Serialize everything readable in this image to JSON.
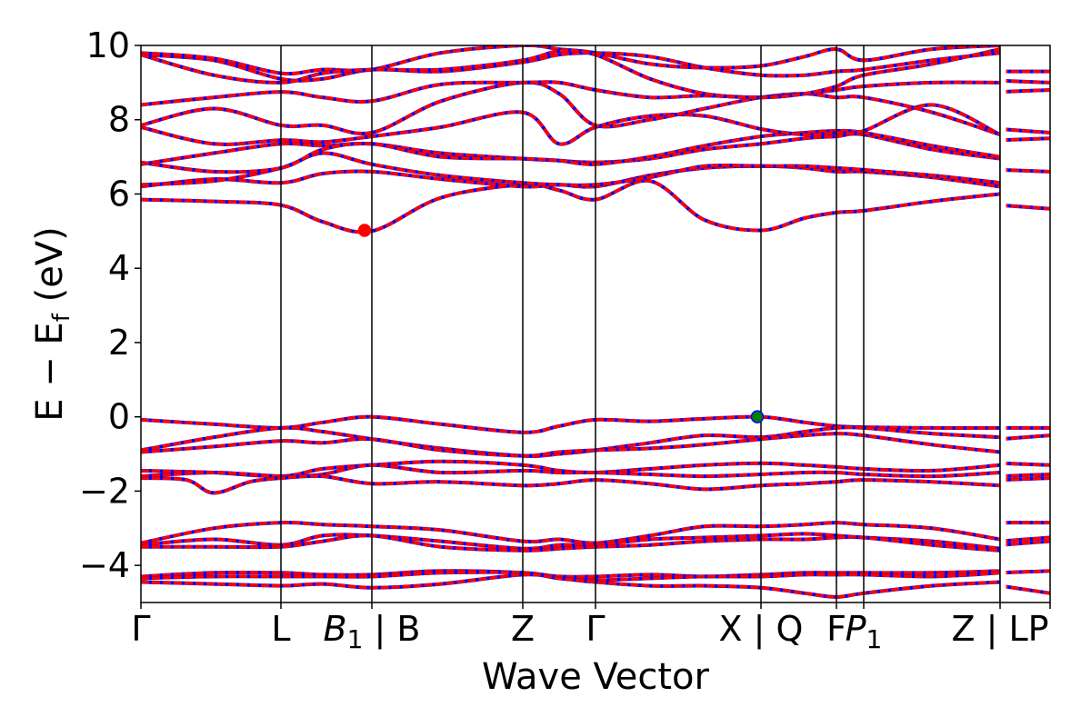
{
  "chart_data": {
    "type": "line",
    "xlabel": "Wave Vector",
    "ylabel": "E − E",
    "ylabel_sub": "f",
    "ylabel_unit": "(eV)",
    "ylim": [
      -5,
      10
    ],
    "yticks": [
      -4,
      -2,
      0,
      2,
      4,
      6,
      8,
      10
    ],
    "ytick_labels": [
      "−4",
      "−2",
      "0",
      "2",
      "4",
      "6",
      "8",
      "10"
    ],
    "xlim": [
      0,
      10
    ],
    "kpoints": [
      {
        "x": 0.0,
        "label": "Γ",
        "sub": ""
      },
      {
        "x": 1.54,
        "label": "L",
        "sub": ""
      },
      {
        "x": 2.54,
        "label": "B",
        "sub": "1",
        "suffix": " | B",
        "italic": true
      },
      {
        "x": 4.2,
        "label": "Z",
        "sub": ""
      },
      {
        "x": 5.0,
        "label": "Γ",
        "sub": ""
      },
      {
        "x": 6.82,
        "label": "X | Q",
        "sub": ""
      },
      {
        "x": 7.65,
        "label": "F",
        "sub": ""
      },
      {
        "x": 7.95,
        "label": "P",
        "sub": "1",
        "italic": true
      },
      {
        "x": 9.45,
        "label": "Z | LP",
        "sub": ""
      },
      {
        "x": 10.0,
        "label": "",
        "sub": ""
      }
    ],
    "segment_breaks": [
      9.45
    ],
    "line_colors": {
      "primary": "#ff0000",
      "secondary": "#0000ff"
    },
    "markers": [
      {
        "name": "cbm",
        "x": 2.46,
        "y": 5.02,
        "color": "#ff0000"
      },
      {
        "name": "vbm",
        "x": 6.78,
        "y": 0.0,
        "color": "#008000"
      }
    ],
    "bands": [
      {
        "x": [
          0,
          0.8,
          1.54,
          2.0,
          2.54,
          3.3,
          4.2,
          4.6,
          5.0,
          5.6,
          6.2,
          6.82,
          7.3,
          7.65,
          7.95,
          8.7,
          9.45
        ],
        "y": [
          -0.08,
          -0.2,
          -0.3,
          -0.15,
          0.0,
          -0.2,
          -0.42,
          -0.25,
          -0.08,
          -0.12,
          -0.05,
          0.0,
          -0.15,
          -0.25,
          -0.28,
          -0.3,
          -0.3
        ]
      },
      {
        "x": [
          0,
          0.8,
          1.54,
          2.0,
          2.54,
          3.3,
          4.2,
          4.6,
          5.0,
          5.6,
          6.2,
          6.82,
          7.3,
          7.65,
          7.95,
          8.7,
          9.45
        ],
        "y": [
          -0.9,
          -0.55,
          -0.3,
          -0.4,
          -0.6,
          -0.85,
          -1.05,
          -1.0,
          -0.9,
          -0.7,
          -0.5,
          -0.55,
          -0.4,
          -0.3,
          -0.3,
          -0.45,
          -0.55
        ]
      },
      {
        "x": [
          0,
          0.8,
          1.54,
          2.0,
          2.54,
          3.3,
          4.2,
          4.6,
          5.0,
          5.6,
          6.2,
          6.82,
          7.3,
          7.65,
          7.95,
          8.7,
          9.45
        ],
        "y": [
          -0.95,
          -0.8,
          -0.65,
          -0.7,
          -0.6,
          -0.9,
          -1.05,
          -0.95,
          -0.9,
          -0.85,
          -0.75,
          -0.6,
          -0.5,
          -0.45,
          -0.5,
          -0.75,
          -0.95
        ]
      },
      {
        "x": [
          0,
          0.8,
          1.54,
          2.0,
          2.54,
          3.3,
          4.2,
          4.6,
          5.0,
          5.6,
          6.2,
          6.82,
          7.3,
          7.65,
          7.95,
          8.7,
          9.45
        ],
        "y": [
          -1.45,
          -1.5,
          -1.6,
          -1.4,
          -1.3,
          -1.2,
          -1.3,
          -1.45,
          -1.5,
          -1.4,
          -1.3,
          -1.25,
          -1.3,
          -1.35,
          -1.4,
          -1.45,
          -1.3
        ]
      },
      {
        "x": [
          0,
          0.8,
          1.54,
          2.0,
          2.54,
          3.3,
          4.2,
          4.6,
          5.0,
          5.6,
          6.2,
          6.82,
          7.3,
          7.65,
          7.95,
          8.7,
          9.45
        ],
        "y": [
          -1.6,
          -1.5,
          -1.6,
          -1.55,
          -1.3,
          -1.5,
          -1.45,
          -1.5,
          -1.5,
          -1.55,
          -1.6,
          -1.55,
          -1.5,
          -1.5,
          -1.55,
          -1.6,
          -1.5
        ]
      },
      {
        "x": [
          0,
          0.5,
          0.8,
          1.2,
          1.54,
          2.0,
          2.54,
          3.3,
          4.2,
          4.6,
          5.0,
          5.6,
          6.2,
          6.82,
          7.3,
          7.65,
          7.95,
          8.7,
          9.45
        ],
        "y": [
          -1.65,
          -1.7,
          -2.05,
          -1.75,
          -1.65,
          -1.6,
          -1.8,
          -1.75,
          -1.85,
          -1.8,
          -1.7,
          -1.8,
          -1.95,
          -1.85,
          -1.8,
          -1.75,
          -1.7,
          -1.75,
          -1.85
        ]
      },
      {
        "x": [
          0,
          0.8,
          1.54,
          2.0,
          2.54,
          3.3,
          4.2,
          4.6,
          5.0,
          5.6,
          6.2,
          6.82,
          7.3,
          7.65,
          7.95,
          8.7,
          9.45
        ],
        "y": [
          -3.4,
          -3.0,
          -2.85,
          -2.9,
          -2.95,
          -3.05,
          -3.35,
          -3.3,
          -3.4,
          -3.2,
          -2.95,
          -2.95,
          -2.9,
          -2.85,
          -2.9,
          -3.0,
          -3.3
        ]
      },
      {
        "x": [
          0,
          0.8,
          1.54,
          2.0,
          2.54,
          3.3,
          4.2,
          4.6,
          5.0,
          5.6,
          6.2,
          6.82,
          7.3,
          7.65,
          7.95,
          8.7,
          9.45
        ],
        "y": [
          -3.45,
          -3.3,
          -3.45,
          -3.2,
          -3.2,
          -3.35,
          -3.55,
          -3.45,
          -3.45,
          -3.3,
          -3.25,
          -3.2,
          -3.15,
          -3.2,
          -3.25,
          -3.35,
          -3.55
        ]
      },
      {
        "x": [
          0,
          0.8,
          1.54,
          2.0,
          2.54,
          3.3,
          4.2,
          4.6,
          5.0,
          5.6,
          6.2,
          6.82,
          7.3,
          7.65,
          7.95,
          8.7,
          9.45
        ],
        "y": [
          -3.5,
          -3.5,
          -3.5,
          -3.35,
          -3.2,
          -3.5,
          -3.6,
          -3.55,
          -3.5,
          -3.45,
          -3.35,
          -3.3,
          -3.3,
          -3.25,
          -3.25,
          -3.45,
          -3.6
        ]
      },
      {
        "x": [
          0,
          0.8,
          1.54,
          2.0,
          2.54,
          3.3,
          4.2,
          4.6,
          5.0,
          5.6,
          6.2,
          6.82,
          7.3,
          7.65,
          7.95,
          8.7,
          9.45
        ],
        "y": [
          -4.3,
          -4.2,
          -4.2,
          -4.25,
          -4.25,
          -4.15,
          -4.2,
          -4.3,
          -4.3,
          -4.25,
          -4.3,
          -4.25,
          -4.2,
          -4.2,
          -4.2,
          -4.2,
          -4.15
        ]
      },
      {
        "x": [
          0,
          0.8,
          1.54,
          2.0,
          2.54,
          3.3,
          4.2,
          4.6,
          5.0,
          5.6,
          6.2,
          6.82,
          7.3,
          7.65,
          7.95,
          8.7,
          9.45
        ],
        "y": [
          -4.35,
          -4.3,
          -4.3,
          -4.3,
          -4.3,
          -4.2,
          -4.2,
          -4.35,
          -4.4,
          -4.35,
          -4.3,
          -4.3,
          -4.25,
          -4.25,
          -4.25,
          -4.3,
          -4.2
        ]
      },
      {
        "x": [
          0,
          0.8,
          1.54,
          2.0,
          2.54,
          3.3,
          4.2,
          4.6,
          5.0,
          5.6,
          6.2,
          6.82,
          7.3,
          7.65,
          7.95,
          8.7,
          9.45
        ],
        "y": [
          -4.45,
          -4.5,
          -4.55,
          -4.5,
          -4.6,
          -4.5,
          -4.25,
          -4.35,
          -4.45,
          -4.55,
          -4.55,
          -4.6,
          -4.75,
          -4.85,
          -4.75,
          -4.55,
          -4.45
        ]
      },
      {
        "x": [
          0,
          0.8,
          1.54,
          2.0,
          2.54,
          3.3,
          4.2,
          4.6,
          5.0,
          5.6,
          6.2,
          6.82,
          7.3,
          7.65,
          7.95,
          8.7,
          9.45
        ],
        "y": [
          5.85,
          5.8,
          5.7,
          5.25,
          5.0,
          5.9,
          6.25,
          6.1,
          5.85,
          6.35,
          5.3,
          5.02,
          5.35,
          5.5,
          5.55,
          5.8,
          6.0
        ]
      },
      {
        "x": [
          0,
          0.8,
          1.54,
          2.0,
          2.54,
          3.3,
          4.2,
          4.6,
          5.0,
          5.6,
          6.2,
          6.82,
          7.3,
          7.65,
          7.95,
          8.7,
          9.45
        ],
        "y": [
          6.2,
          6.4,
          6.3,
          6.55,
          6.6,
          6.4,
          6.2,
          6.25,
          6.2,
          6.5,
          6.7,
          6.75,
          6.7,
          6.6,
          6.6,
          6.45,
          6.2
        ]
      },
      {
        "x": [
          0,
          0.8,
          1.54,
          2.0,
          2.54,
          3.3,
          4.2,
          4.6,
          5.0,
          5.6,
          6.2,
          6.82,
          7.3,
          7.65,
          7.95,
          8.7,
          9.45
        ],
        "y": [
          6.25,
          6.35,
          6.7,
          7.1,
          6.8,
          6.5,
          6.3,
          6.25,
          6.25,
          6.45,
          6.75,
          6.75,
          6.75,
          6.7,
          6.65,
          6.5,
          6.3
        ]
      },
      {
        "x": [
          0,
          0.8,
          1.54,
          2.0,
          2.54,
          3.3,
          4.2,
          4.6,
          5.0,
          5.6,
          6.2,
          6.82,
          7.3,
          7.65,
          7.95,
          8.7,
          9.45
        ],
        "y": [
          6.8,
          7.1,
          7.35,
          7.3,
          7.35,
          7.1,
          6.95,
          6.9,
          6.85,
          6.95,
          7.2,
          7.35,
          7.5,
          7.55,
          7.6,
          7.2,
          6.95
        ]
      },
      {
        "x": [
          0,
          0.8,
          1.54,
          2.0,
          2.54,
          3.3,
          4.2,
          4.6,
          5.0,
          5.6,
          6.2,
          6.82,
          7.3,
          7.65,
          7.95,
          8.7,
          9.45
        ],
        "y": [
          6.85,
          6.6,
          6.7,
          7.2,
          7.35,
          7.0,
          6.95,
          6.9,
          6.8,
          7.0,
          7.3,
          7.55,
          7.65,
          7.7,
          7.65,
          7.3,
          7.0
        ]
      },
      {
        "x": [
          0,
          0.8,
          1.54,
          2.0,
          2.54,
          3.3,
          4.2,
          4.6,
          5.0,
          5.6,
          6.2,
          6.82,
          7.3,
          7.65,
          7.95,
          8.7,
          9.45
        ],
        "y": [
          7.8,
          7.35,
          7.45,
          7.4,
          7.55,
          7.8,
          8.2,
          7.35,
          7.8,
          8.1,
          8.1,
          7.75,
          7.6,
          7.65,
          7.7,
          8.4,
          7.6
        ]
      },
      {
        "x": [
          0,
          0.8,
          1.54,
          2.0,
          2.54,
          3.3,
          4.2,
          4.6,
          5.0,
          5.6,
          6.2,
          6.82,
          7.3,
          7.65,
          7.95,
          8.7,
          9.45
        ],
        "y": [
          7.85,
          8.3,
          7.85,
          7.85,
          7.65,
          8.5,
          9.0,
          8.7,
          7.85,
          8.0,
          8.3,
          8.6,
          8.7,
          8.6,
          8.6,
          8.2,
          7.6
        ]
      },
      {
        "x": [
          0,
          0.8,
          1.54,
          2.0,
          2.54,
          3.3,
          4.2,
          4.6,
          5.0,
          5.6,
          6.2,
          6.82,
          7.3,
          7.65,
          7.95,
          8.7,
          9.45
        ],
        "y": [
          8.4,
          8.6,
          8.75,
          8.6,
          8.5,
          8.95,
          9.0,
          9.0,
          8.8,
          8.6,
          8.65,
          8.6,
          8.7,
          8.8,
          8.9,
          9.0,
          9.0
        ]
      },
      {
        "x": [
          0,
          0.8,
          1.54,
          2.0,
          2.54,
          3.3,
          4.2,
          4.6,
          5.0,
          5.6,
          6.2,
          6.82,
          7.3,
          7.65,
          7.95,
          8.7,
          9.45
        ],
        "y": [
          9.75,
          9.6,
          9.1,
          9.1,
          9.35,
          9.3,
          9.55,
          9.75,
          9.8,
          9.7,
          9.4,
          9.2,
          9.2,
          9.3,
          9.35,
          9.6,
          9.8
        ]
      },
      {
        "x": [
          0,
          0.8,
          1.54,
          2.0,
          2.54,
          3.3,
          4.2,
          4.6,
          5.0,
          5.6,
          6.2,
          6.82,
          7.3,
          7.65,
          7.95,
          8.7,
          9.45
        ],
        "y": [
          9.8,
          9.65,
          9.25,
          9.35,
          9.35,
          9.8,
          10.0,
          9.9,
          9.8,
          9.5,
          9.4,
          9.45,
          9.7,
          9.9,
          9.6,
          9.9,
          10.0
        ]
      },
      {
        "x": [
          0,
          0.8,
          1.54,
          2.0,
          2.54,
          3.3,
          4.2,
          4.6,
          5.0,
          5.6,
          6.2,
          6.82,
          7.3,
          7.65,
          7.95,
          8.7,
          9.45
        ],
        "y": [
          9.75,
          9.2,
          9.0,
          9.25,
          9.35,
          9.35,
          9.6,
          9.85,
          9.75,
          9.1,
          8.7,
          8.6,
          8.7,
          8.9,
          9.2,
          9.5,
          9.9
        ]
      },
      {
        "x": [
          9.45,
          10.0
        ],
        "y": [
          -0.3,
          -0.3
        ]
      },
      {
        "x": [
          9.45,
          10.0
        ],
        "y": [
          -0.6,
          -0.5
        ]
      },
      {
        "x": [
          9.45,
          10.0
        ],
        "y": [
          -1.25,
          -1.3
        ]
      },
      {
        "x": [
          9.45,
          10.0
        ],
        "y": [
          -1.6,
          -1.55
        ]
      },
      {
        "x": [
          9.45,
          10.0
        ],
        "y": [
          -1.7,
          -1.65
        ]
      },
      {
        "x": [
          9.45,
          10.0
        ],
        "y": [
          -2.85,
          -2.85
        ]
      },
      {
        "x": [
          9.45,
          10.0
        ],
        "y": [
          -3.35,
          -3.25
        ]
      },
      {
        "x": [
          9.45,
          10.0
        ],
        "y": [
          -3.45,
          -3.35
        ]
      },
      {
        "x": [
          9.45,
          10.0
        ],
        "y": [
          -4.2,
          -4.15
        ]
      },
      {
        "x": [
          9.45,
          10.0
        ],
        "y": [
          -4.55,
          -4.75
        ]
      },
      {
        "x": [
          9.45,
          10.0
        ],
        "y": [
          5.7,
          5.6
        ]
      },
      {
        "x": [
          9.45,
          10.0
        ],
        "y": [
          6.65,
          6.6
        ]
      },
      {
        "x": [
          9.45,
          10.0
        ],
        "y": [
          7.45,
          7.5
        ]
      },
      {
        "x": [
          9.45,
          10.0
        ],
        "y": [
          7.75,
          7.65
        ]
      },
      {
        "x": [
          9.45,
          10.0
        ],
        "y": [
          8.75,
          8.8
        ]
      },
      {
        "x": [
          9.45,
          10.0
        ],
        "y": [
          9.05,
          9.0
        ]
      },
      {
        "x": [
          9.45,
          10.0
        ],
        "y": [
          9.3,
          9.3
        ]
      }
    ]
  }
}
